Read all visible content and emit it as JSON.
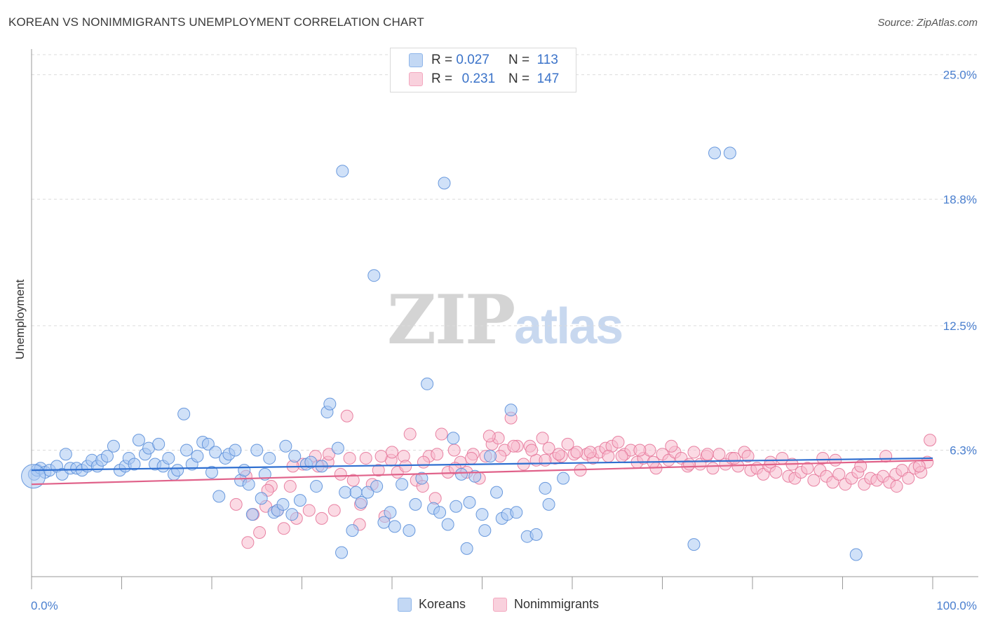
{
  "header": {
    "title": "KOREAN VS NONIMMIGRANTS UNEMPLOYMENT CORRELATION CHART",
    "source": "Source: ZipAtlas.com"
  },
  "legend_top": {
    "rows": [
      {
        "r_label": "R =",
        "r_value": "0.027",
        "n_label": "N =",
        "n_value": "113",
        "color": "#8fb6ea"
      },
      {
        "r_label": "R =",
        "r_value": "0.231",
        "n_label": "N =",
        "n_value": "147",
        "color": "#f3a8bf"
      }
    ]
  },
  "legend_bottom": {
    "items": [
      {
        "label": "Koreans",
        "color": "#8fb6ea"
      },
      {
        "label": "Nonimmigrants",
        "color": "#f3a8bf"
      }
    ]
  },
  "watermark": {
    "zip": "ZIP",
    "atlas": "atlas"
  },
  "chart_data": {
    "type": "scatter",
    "title": "KOREAN VS NONIMMIGRANTS UNEMPLOYMENT CORRELATION CHART",
    "xlabel": "",
    "ylabel": "Unemployment",
    "xlim": [
      0,
      100
    ],
    "ylim": [
      0,
      26
    ],
    "x_tick_labels": [
      "0.0%",
      "100.0%"
    ],
    "y_ticks": [
      6.3,
      12.5,
      18.8,
      25.0
    ],
    "y_tick_labels": [
      "6.3%",
      "12.5%",
      "18.8%",
      "25.0%"
    ],
    "grid": "horizontal dashed",
    "legend": "top-center",
    "series": [
      {
        "name": "Koreans",
        "color": "#5b8fd9",
        "fill": "#a9c9f2",
        "trend": {
          "x": [
            0,
            100
          ],
          "y": [
            5.3,
            5.9
          ]
        },
        "points": [
          [
            0.3,
            5.1
          ],
          [
            0.6,
            5.3
          ],
          [
            1.0,
            5.4
          ],
          [
            1.5,
            5.2
          ],
          [
            2.0,
            5.3
          ],
          [
            2.8,
            5.5
          ],
          [
            3.4,
            5.1
          ],
          [
            3.8,
            6.1
          ],
          [
            4.3,
            5.4
          ],
          [
            5.0,
            5.4
          ],
          [
            5.6,
            5.3
          ],
          [
            6.2,
            5.5
          ],
          [
            6.7,
            5.8
          ],
          [
            7.3,
            5.5
          ],
          [
            7.8,
            5.8
          ],
          [
            8.4,
            6.0
          ],
          [
            9.1,
            6.5
          ],
          [
            9.8,
            5.3
          ],
          [
            10.4,
            5.5
          ],
          [
            10.8,
            5.9
          ],
          [
            11.4,
            5.6
          ],
          [
            11.9,
            6.8
          ],
          [
            12.6,
            6.1
          ],
          [
            13.0,
            6.4
          ],
          [
            13.7,
            5.6
          ],
          [
            14.1,
            6.6
          ],
          [
            14.6,
            5.5
          ],
          [
            15.2,
            5.9
          ],
          [
            15.8,
            5.1
          ],
          [
            16.2,
            5.3
          ],
          [
            16.9,
            8.1
          ],
          [
            17.2,
            6.3
          ],
          [
            17.8,
            5.6
          ],
          [
            18.4,
            6.0
          ],
          [
            19.0,
            6.7
          ],
          [
            19.6,
            6.6
          ],
          [
            20.0,
            5.2
          ],
          [
            20.4,
            6.2
          ],
          [
            20.8,
            4.0
          ],
          [
            21.5,
            5.9
          ],
          [
            21.9,
            6.1
          ],
          [
            22.6,
            6.3
          ],
          [
            23.2,
            4.8
          ],
          [
            23.6,
            5.3
          ],
          [
            24.1,
            4.6
          ],
          [
            24.5,
            3.1
          ],
          [
            25.0,
            6.3
          ],
          [
            25.5,
            3.9
          ],
          [
            25.9,
            5.1
          ],
          [
            26.4,
            5.9
          ],
          [
            26.9,
            3.2
          ],
          [
            27.3,
            3.3
          ],
          [
            27.9,
            3.6
          ],
          [
            28.2,
            6.5
          ],
          [
            28.9,
            3.1
          ],
          [
            29.2,
            6.0
          ],
          [
            29.8,
            3.8
          ],
          [
            30.5,
            5.6
          ],
          [
            31.0,
            5.7
          ],
          [
            31.6,
            4.5
          ],
          [
            32.2,
            5.5
          ],
          [
            32.8,
            8.2
          ],
          [
            33.1,
            8.6
          ],
          [
            34.0,
            6.4
          ],
          [
            34.4,
            1.2
          ],
          [
            34.8,
            4.2
          ],
          [
            35.6,
            2.3
          ],
          [
            36.0,
            4.2
          ],
          [
            36.6,
            3.7
          ],
          [
            37.3,
            4.2
          ],
          [
            38.0,
            15.0
          ],
          [
            38.3,
            4.5
          ],
          [
            39.1,
            2.7
          ],
          [
            39.8,
            3.2
          ],
          [
            40.3,
            2.5
          ],
          [
            41.1,
            4.6
          ],
          [
            41.9,
            2.3
          ],
          [
            42.6,
            3.6
          ],
          [
            43.3,
            4.9
          ],
          [
            43.9,
            9.6
          ],
          [
            44.6,
            3.4
          ],
          [
            45.3,
            3.2
          ],
          [
            45.8,
            19.6
          ],
          [
            46.2,
            2.6
          ],
          [
            46.8,
            6.9
          ],
          [
            47.1,
            3.5
          ],
          [
            47.7,
            5.1
          ],
          [
            48.3,
            1.4
          ],
          [
            48.6,
            3.7
          ],
          [
            49.2,
            5.0
          ],
          [
            50.0,
            3.1
          ],
          [
            50.3,
            2.3
          ],
          [
            50.9,
            6.0
          ],
          [
            51.6,
            4.2
          ],
          [
            52.2,
            2.9
          ],
          [
            52.8,
            3.1
          ],
          [
            53.2,
            8.3
          ],
          [
            53.8,
            3.2
          ],
          [
            55.0,
            2.0
          ],
          [
            56.0,
            2.1
          ],
          [
            57.0,
            4.4
          ],
          [
            57.4,
            3.6
          ],
          [
            59.0,
            4.9
          ],
          [
            34.5,
            20.2
          ],
          [
            75.8,
            21.1
          ],
          [
            77.5,
            21.1
          ],
          [
            73.5,
            1.6
          ],
          [
            91.5,
            1.1
          ],
          [
            0.2,
            5.0
          ]
        ],
        "sizes_note": "one enlarged point near x=0"
      },
      {
        "name": "Nonimmigrants",
        "color": "#e67699",
        "fill": "#f7bccd",
        "trend": {
          "x": [
            0,
            100
          ],
          "y": [
            4.6,
            5.8
          ]
        },
        "points": [
          [
            22.7,
            3.6
          ],
          [
            24.0,
            1.7
          ],
          [
            24.6,
            3.1
          ],
          [
            25.3,
            2.2
          ],
          [
            26.0,
            3.5
          ],
          [
            26.6,
            4.5
          ],
          [
            27.3,
            3.3
          ],
          [
            28.0,
            2.4
          ],
          [
            28.7,
            4.5
          ],
          [
            29.4,
            2.9
          ],
          [
            30.1,
            5.6
          ],
          [
            30.8,
            3.3
          ],
          [
            31.5,
            6.0
          ],
          [
            32.2,
            2.9
          ],
          [
            32.9,
            5.7
          ],
          [
            33.6,
            3.3
          ],
          [
            34.3,
            5.1
          ],
          [
            35.0,
            8.0
          ],
          [
            35.7,
            4.8
          ],
          [
            36.4,
            2.6
          ],
          [
            37.1,
            5.9
          ],
          [
            37.8,
            4.6
          ],
          [
            38.5,
            5.3
          ],
          [
            39.2,
            3.0
          ],
          [
            39.9,
            5.8
          ],
          [
            40.6,
            5.2
          ],
          [
            41.3,
            6.0
          ],
          [
            42.0,
            7.1
          ],
          [
            42.7,
            4.8
          ],
          [
            43.4,
            4.5
          ],
          [
            44.1,
            6.0
          ],
          [
            44.8,
            3.9
          ],
          [
            45.5,
            7.1
          ],
          [
            46.2,
            5.2
          ],
          [
            46.9,
            6.3
          ],
          [
            47.6,
            5.7
          ],
          [
            48.3,
            5.2
          ],
          [
            49.0,
            6.1
          ],
          [
            49.7,
            4.9
          ],
          [
            50.4,
            6.0
          ],
          [
            51.1,
            6.6
          ],
          [
            51.8,
            6.9
          ],
          [
            52.5,
            6.3
          ],
          [
            53.2,
            7.9
          ],
          [
            53.9,
            6.5
          ],
          [
            54.6,
            5.6
          ],
          [
            55.3,
            6.5
          ],
          [
            56.0,
            5.8
          ],
          [
            56.7,
            6.9
          ],
          [
            57.4,
            6.4
          ],
          [
            58.1,
            5.9
          ],
          [
            58.8,
            6.0
          ],
          [
            59.5,
            6.6
          ],
          [
            60.2,
            6.1
          ],
          [
            60.9,
            5.3
          ],
          [
            61.6,
            6.1
          ],
          [
            62.3,
            5.9
          ],
          [
            63.0,
            6.2
          ],
          [
            63.7,
            6.4
          ],
          [
            64.4,
            6.5
          ],
          [
            65.1,
            6.7
          ],
          [
            65.8,
            6.1
          ],
          [
            66.5,
            6.3
          ],
          [
            67.2,
            5.7
          ],
          [
            67.9,
            5.9
          ],
          [
            68.6,
            6.3
          ],
          [
            69.3,
            5.4
          ],
          [
            70.0,
            6.1
          ],
          [
            70.7,
            5.8
          ],
          [
            71.4,
            6.2
          ],
          [
            72.1,
            5.9
          ],
          [
            72.8,
            5.5
          ],
          [
            73.5,
            6.2
          ],
          [
            74.2,
            5.6
          ],
          [
            74.9,
            6.0
          ],
          [
            75.6,
            5.4
          ],
          [
            76.3,
            6.1
          ],
          [
            77.0,
            5.6
          ],
          [
            77.7,
            5.9
          ],
          [
            78.4,
            5.5
          ],
          [
            79.1,
            6.2
          ],
          [
            79.8,
            5.3
          ],
          [
            80.5,
            5.4
          ],
          [
            81.2,
            5.1
          ],
          [
            81.9,
            5.5
          ],
          [
            82.6,
            5.2
          ],
          [
            83.3,
            5.9
          ],
          [
            84.0,
            5.0
          ],
          [
            84.7,
            4.9
          ],
          [
            85.4,
            5.2
          ],
          [
            86.1,
            5.4
          ],
          [
            86.8,
            4.8
          ],
          [
            87.5,
            5.3
          ],
          [
            88.2,
            5.0
          ],
          [
            88.9,
            4.7
          ],
          [
            89.6,
            5.1
          ],
          [
            90.3,
            4.6
          ],
          [
            91.0,
            4.9
          ],
          [
            91.7,
            5.2
          ],
          [
            92.4,
            4.6
          ],
          [
            93.1,
            4.9
          ],
          [
            93.8,
            4.8
          ],
          [
            94.5,
            5.0
          ],
          [
            95.2,
            4.7
          ],
          [
            95.9,
            5.1
          ],
          [
            96.6,
            5.3
          ],
          [
            97.3,
            4.9
          ],
          [
            98.0,
            5.4
          ],
          [
            98.7,
            5.2
          ],
          [
            99.4,
            5.7
          ],
          [
            99.7,
            6.8
          ],
          [
            94.8,
            6.0
          ],
          [
            89.2,
            5.8
          ],
          [
            84.4,
            5.6
          ],
          [
            79.5,
            6.0
          ],
          [
            75.0,
            6.1
          ],
          [
            71.0,
            6.5
          ],
          [
            67.5,
            6.3
          ],
          [
            64.0,
            6.0
          ],
          [
            60.5,
            6.2
          ],
          [
            57.0,
            5.8
          ],
          [
            53.5,
            6.5
          ],
          [
            50.8,
            7.0
          ],
          [
            47.0,
            5.4
          ],
          [
            43.5,
            5.7
          ],
          [
            40.0,
            6.2
          ],
          [
            36.5,
            3.6
          ],
          [
            33.0,
            6.1
          ],
          [
            29.0,
            5.5
          ],
          [
            26.2,
            4.3
          ],
          [
            23.8,
            5.0
          ],
          [
            98.5,
            5.5
          ],
          [
            96.0,
            4.5
          ],
          [
            92.0,
            5.5
          ],
          [
            87.8,
            5.9
          ],
          [
            82.0,
            5.7
          ],
          [
            78.0,
            5.9
          ],
          [
            73.0,
            5.6
          ],
          [
            69.0,
            5.7
          ],
          [
            65.5,
            6.0
          ],
          [
            62.0,
            6.2
          ],
          [
            58.5,
            6.1
          ],
          [
            55.5,
            6.3
          ],
          [
            52.0,
            6.0
          ],
          [
            48.8,
            5.9
          ],
          [
            45.0,
            6.1
          ],
          [
            41.5,
            5.5
          ],
          [
            38.8,
            6.0
          ],
          [
            35.3,
            5.9
          ],
          [
            31.8,
            5.5
          ]
        ]
      }
    ]
  }
}
